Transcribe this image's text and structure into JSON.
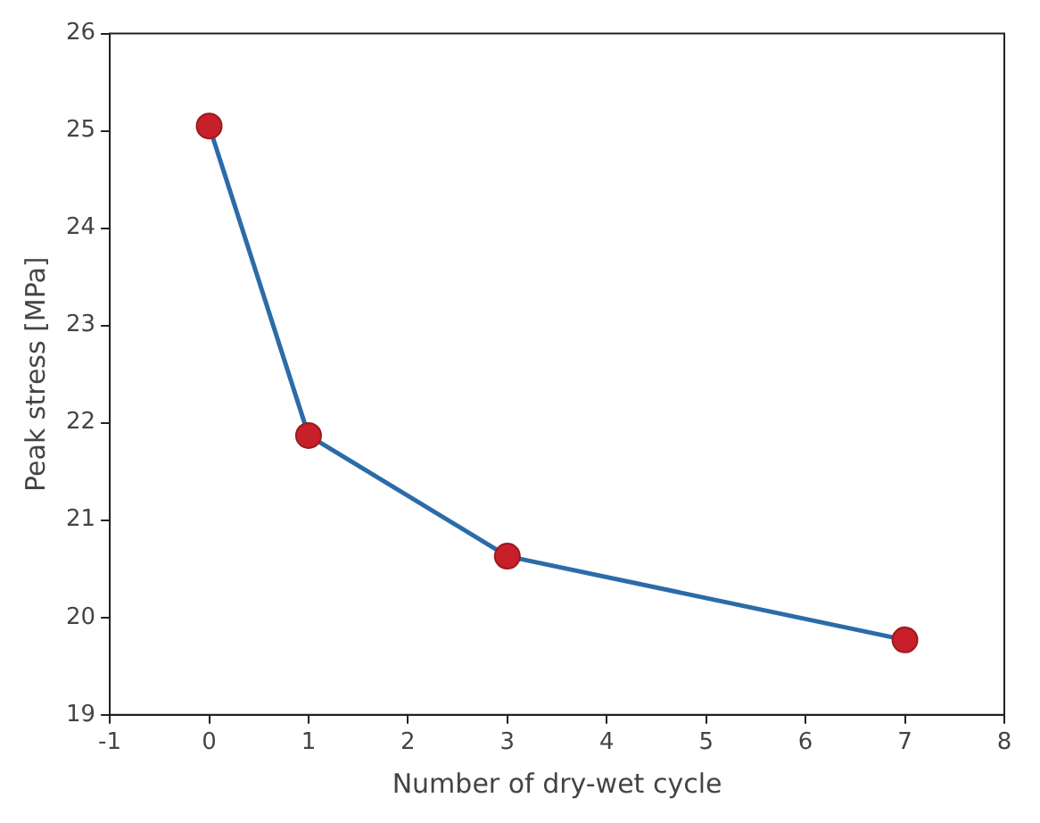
{
  "chart_data": {
    "type": "line",
    "xlabel": "Number of dry-wet cycle",
    "ylabel": "Peak stress [MPa]",
    "x": [
      0,
      1,
      3,
      7
    ],
    "series": [
      {
        "color": "#2b6ca8",
        "values": [
          25.05,
          21.87,
          20.63,
          19.77
        ]
      }
    ],
    "xlim": [
      -1,
      8
    ],
    "xticks": [
      -1,
      0,
      1,
      2,
      3,
      4,
      5,
      6,
      7,
      8
    ],
    "ylim": [
      19,
      26
    ],
    "yticks": [
      19,
      20,
      21,
      22,
      23,
      24,
      25,
      26
    ],
    "marker": "circle",
    "line_style": "solid",
    "grid": false,
    "legend": false
  }
}
